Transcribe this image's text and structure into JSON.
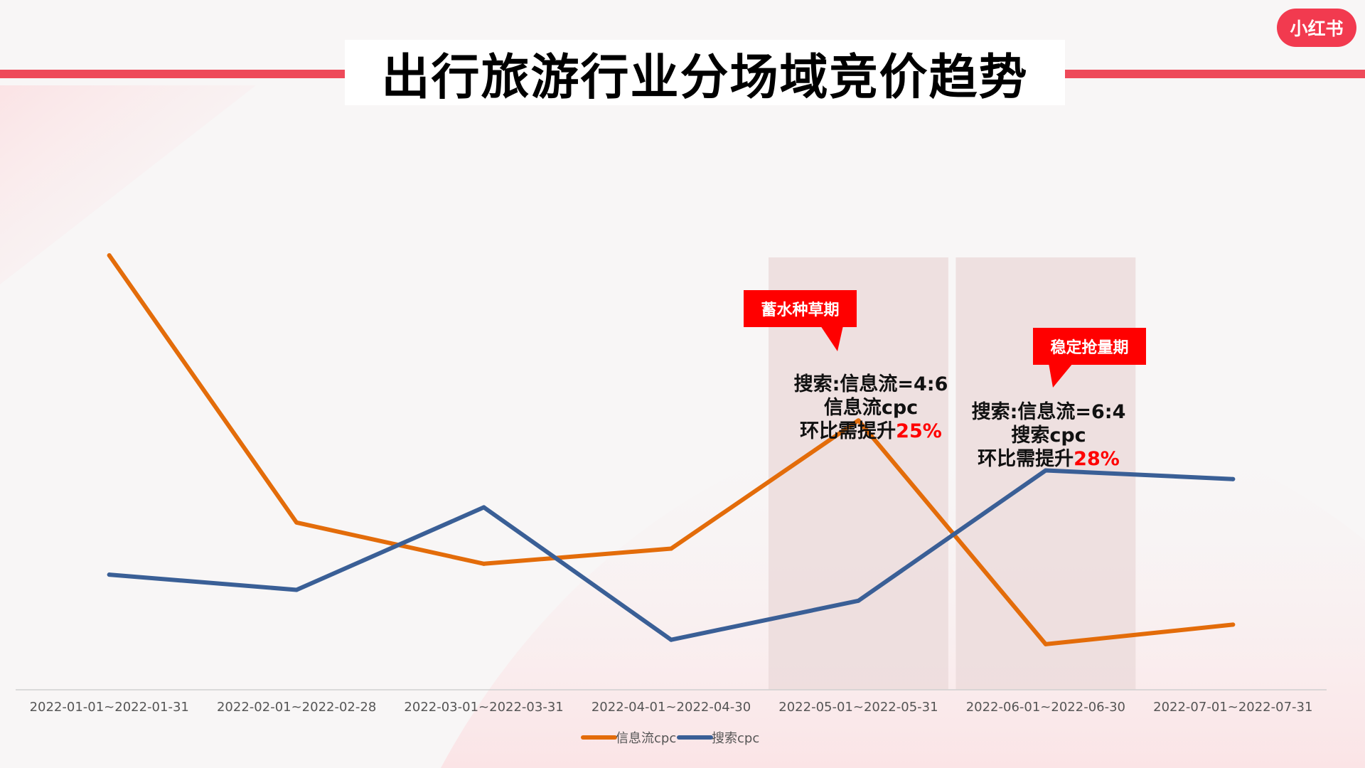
{
  "title": "出行旅游行业分场域竞价趋势",
  "brand": {
    "logo_text": "小红书",
    "color": "#f23a4f"
  },
  "chart_data": {
    "type": "line",
    "title": "出行旅游行业分场域竞价趋势",
    "xlabel": "",
    "ylabel": "",
    "categories": [
      "2022-01-01~2022-01-31",
      "2022-02-01~2022-02-28",
      "2022-03-01~2022-03-31",
      "2022-04-01~2022-04-30",
      "2022-05-01~2022-05-31",
      "2022-06-01~2022-06-30",
      "2022-07-01~2022-07-31"
    ],
    "series": [
      {
        "name": "信息流cpc",
        "color": "#e36c0a",
        "values": [
          100,
          38.5,
          29,
          32.5,
          62,
          10.5,
          15
        ]
      },
      {
        "name": "搜索cpc",
        "color": "#3a5f96",
        "values": [
          26.5,
          23,
          42,
          11.5,
          20.5,
          50.5,
          48.5
        ]
      }
    ],
    "ylim": [
      0,
      110
    ],
    "grid": false,
    "axis_line_color": "#d0d0d0",
    "legend": {
      "placement": "bottom-center"
    },
    "highlight_bands": [
      {
        "category_index": 4,
        "color": "#ecdcdc"
      },
      {
        "category_index": 5,
        "color": "#ecdcdc"
      }
    ],
    "annotations": [
      {
        "label": "蓄水种草期",
        "lines": [
          "搜索:信息流=4:6",
          "信息流cpc",
          "环比需提升"
        ],
        "highlight": "25%",
        "highlight_color": "#ff0000"
      },
      {
        "label": "稳定抢量期",
        "lines": [
          "搜索:信息流=6:4",
          "搜索cpc",
          "环比需提升"
        ],
        "highlight": "28%",
        "highlight_color": "#ff0000"
      }
    ]
  }
}
